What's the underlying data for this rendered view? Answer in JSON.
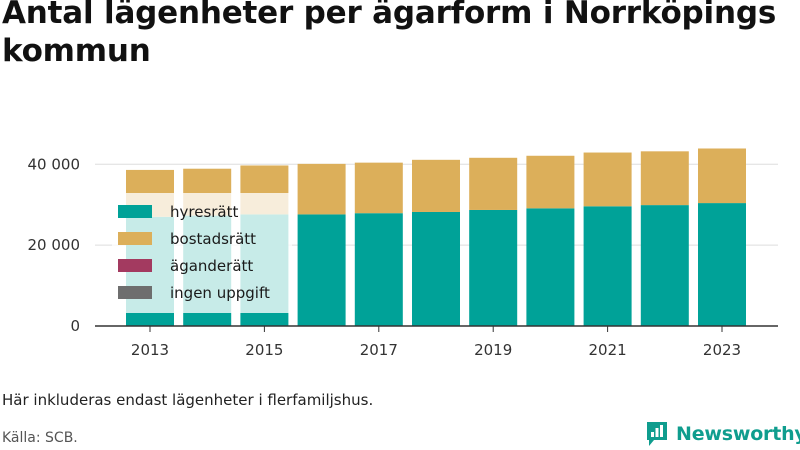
{
  "title": "Antal lägenheter per ägarform i Norrköpings kommun",
  "note": "Här inkluderas endast lägenheter i flerfamiljshus.",
  "source": "Källa: SCB.",
  "brand": "Newsworthy",
  "colors": {
    "hyresratt": "#00a298",
    "bostadsratt": "#dcaf5a",
    "aganderatt": "#a33a60",
    "ingen_uppgift": "#6e6e6e",
    "grid": "#dddddd",
    "axis": "#333333",
    "brand": "#0f9d8e"
  },
  "chart_data": {
    "type": "bar",
    "stacked": true,
    "categories": [
      "2013",
      "2014",
      "2015",
      "2016",
      "2017",
      "2018",
      "2019",
      "2020",
      "2021",
      "2022",
      "2023"
    ],
    "x_tick_labels": [
      "2013",
      "2015",
      "2017",
      "2019",
      "2021",
      "2023"
    ],
    "y_ticks": [
      0,
      20000,
      40000
    ],
    "y_tick_labels": [
      "0",
      "20 000",
      "40 000"
    ],
    "ylim": [
      0,
      46000
    ],
    "grid": true,
    "legend_placement": "left, inside plot",
    "series": [
      {
        "name": "hyresrätt",
        "color_key": "hyresratt",
        "values": [
          27000,
          27300,
          27600,
          27600,
          27900,
          28200,
          28700,
          29100,
          29600,
          29900,
          30400
        ]
      },
      {
        "name": "bostadsrätt",
        "color_key": "bostadsratt",
        "values": [
          11600,
          11600,
          12100,
          12500,
          12500,
          12900,
          12900,
          13000,
          13300,
          13300,
          13500
        ]
      },
      {
        "name": "äganderätt",
        "color_key": "aganderatt",
        "values": [
          0,
          0,
          0,
          0,
          0,
          0,
          0,
          0,
          0,
          0,
          0
        ]
      },
      {
        "name": "ingen uppgift",
        "color_key": "ingen_uppgift",
        "values": [
          0,
          0,
          0,
          0,
          0,
          0,
          0,
          0,
          0,
          0,
          0
        ]
      }
    ]
  }
}
